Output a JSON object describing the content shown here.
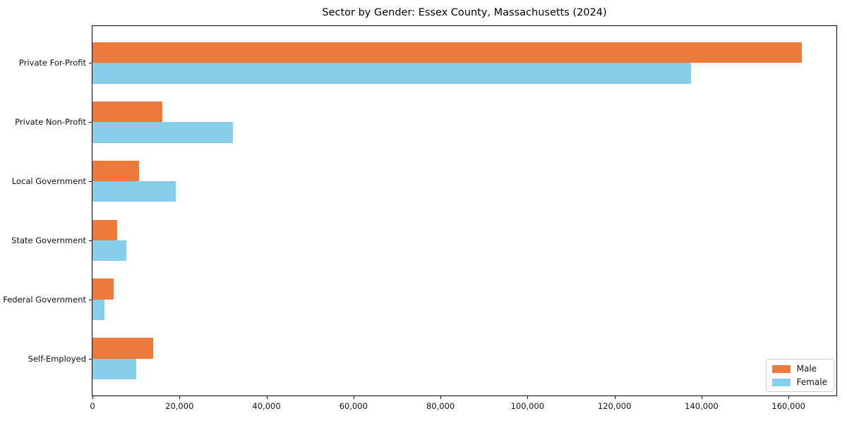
{
  "chart_data": {
    "type": "bar",
    "orientation": "horizontal",
    "title": "Sector by Gender: Essex County, Massachusetts (2024)",
    "categories": [
      "Private For-Profit",
      "Private Non-Profit",
      "Local Government",
      "State Government",
      "Federal Government",
      "Self-Employed"
    ],
    "series": [
      {
        "name": "Male",
        "color": "#EB7A3C",
        "values": [
          163000,
          16100,
          10700,
          5700,
          4900,
          14000
        ]
      },
      {
        "name": "Female",
        "color": "#87CEEB",
        "values": [
          137500,
          32300,
          19200,
          7800,
          2800,
          10100
        ]
      }
    ],
    "xlabel": "",
    "ylabel": "",
    "xlim": [
      0,
      171000
    ],
    "xticks": [
      0,
      20000,
      40000,
      60000,
      80000,
      100000,
      120000,
      140000,
      160000
    ],
    "xtick_labels": [
      "0",
      "20,000",
      "40,000",
      "60,000",
      "80,000",
      "100,000",
      "120,000",
      "140,000",
      "160,000"
    ],
    "grid": false,
    "legend_position": "lower right",
    "bar_group_fraction": 0.7
  }
}
